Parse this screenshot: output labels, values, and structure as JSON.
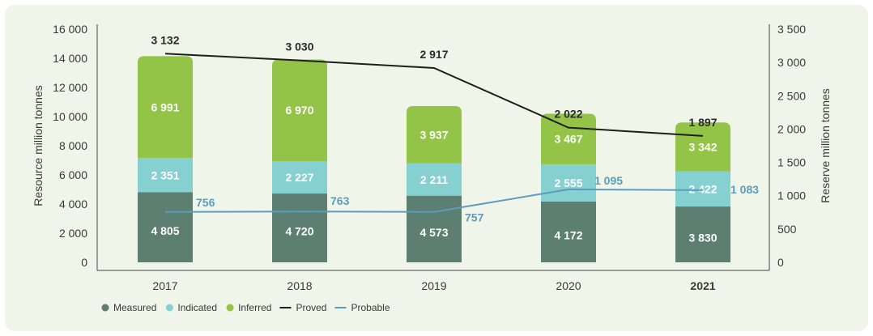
{
  "chart_data": {
    "type": "bar",
    "categories": [
      "2017",
      "2018",
      "2019",
      "2020",
      "2021"
    ],
    "bold_category": "2021",
    "y_left": {
      "label": "Resource million tonnes",
      "range": [
        0,
        16000
      ],
      "ticks": [
        0,
        2000,
        4000,
        6000,
        8000,
        10000,
        12000,
        14000,
        16000
      ],
      "tick_labels": [
        "0",
        "2 000",
        "4 000",
        "6 000",
        "8 000",
        "10 000",
        "12 000",
        "14 000",
        "16 000"
      ]
    },
    "y_right": {
      "label": "Reserve million tonnes",
      "range": [
        0,
        3500
      ],
      "ticks": [
        0,
        500,
        1000,
        1500,
        2000,
        2500,
        3000,
        3500
      ],
      "tick_labels": [
        "0",
        "500",
        "1 000",
        "1 500",
        "2 000",
        "2 500",
        "3 000",
        "3 500"
      ]
    },
    "stacked_series": [
      {
        "name": "Measured",
        "color": "#5c7f72",
        "values": [
          4805,
          4720,
          4573,
          4172,
          3830
        ],
        "labels": [
          "4 805",
          "4 720",
          "4 573",
          "4 172",
          "3 830"
        ]
      },
      {
        "name": "Indicated",
        "color": "#86d0d2",
        "values": [
          2351,
          2227,
          2211,
          2555,
          2422
        ],
        "labels": [
          "2 351",
          "2 227",
          "2 211",
          "2 555",
          "2 422"
        ]
      },
      {
        "name": "Inferred",
        "color": "#94c447",
        "values": [
          6991,
          6970,
          3937,
          3467,
          3342
        ],
        "labels": [
          "6 991",
          "6 970",
          "3 937",
          "3 467",
          "3 342"
        ]
      }
    ],
    "line_series": [
      {
        "name": "Proved",
        "color": "#1e1e1e",
        "axis": "right",
        "values": [
          3132,
          3030,
          2917,
          2022,
          1897
        ],
        "labels": [
          "3 132",
          "3 030",
          "2 917",
          "2 022",
          "1 897"
        ]
      },
      {
        "name": "Probable",
        "color": "#5b9cbf",
        "axis": "right",
        "values": [
          756,
          763,
          757,
          1095,
          1083
        ],
        "labels": [
          "756",
          "763",
          "757",
          "1 095",
          "1 083"
        ]
      }
    ],
    "legend": [
      "Measured",
      "Indicated",
      "Inferred",
      "Proved",
      "Probable"
    ],
    "legend_position": "bottom-left",
    "grid": false
  }
}
